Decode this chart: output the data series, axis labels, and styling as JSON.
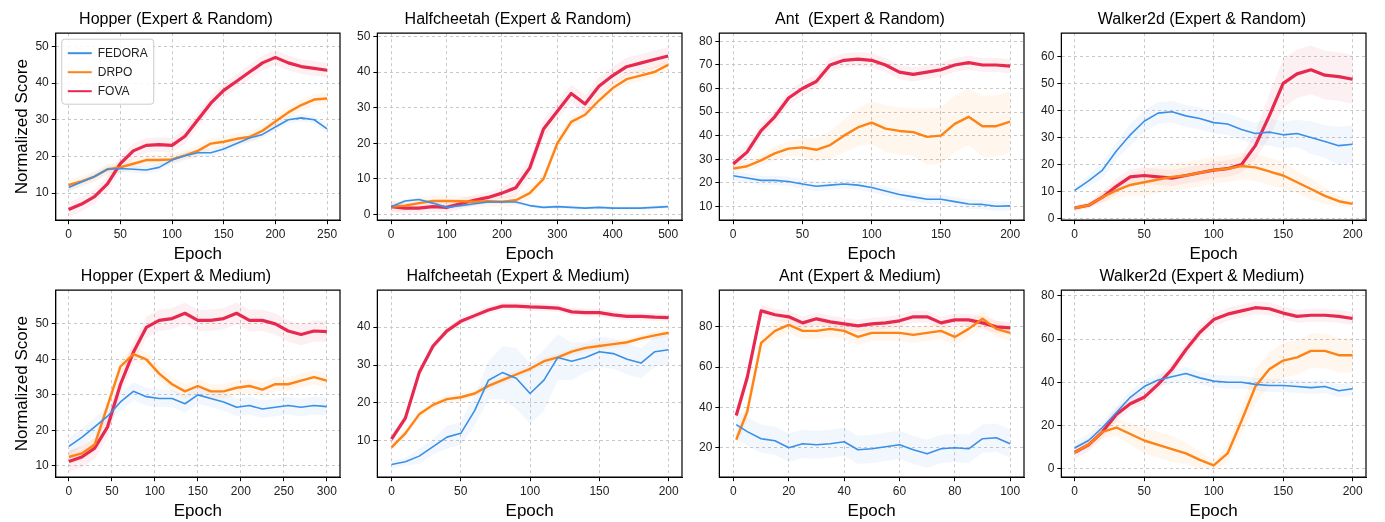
{
  "chart_data": [
    {
      "type": "line",
      "title": "Hopper (Expert & Random)",
      "xlabel": "Epoch",
      "ylabel": "Normalized Score",
      "x": [
        0,
        12.5,
        25,
        37.5,
        50,
        62.5,
        75,
        87.5,
        100,
        112.5,
        125,
        137.5,
        150,
        162.5,
        175,
        187.5,
        200,
        212.5,
        225,
        237.5,
        250
      ],
      "xlim": [
        -12.5,
        262.5
      ],
      "xticks": [
        0,
        50,
        100,
        150,
        200,
        250
      ],
      "ylim": [
        2.6,
        53.6
      ],
      "yticks": [
        10,
        20,
        30,
        40,
        50
      ],
      "grid": true,
      "legend": "top left",
      "series": [
        {
          "name": "FEDORA",
          "color": "#3a8fe6",
          "values": [
            11.5,
            13,
            14.5,
            16.5,
            16.7,
            16.5,
            16.3,
            17,
            19,
            20.2,
            21,
            21,
            22,
            23.5,
            25,
            26,
            28,
            30,
            30.5,
            30,
            27.5
          ],
          "lower": [
            10.5,
            12,
            13.5,
            15.5,
            15.7,
            15.5,
            15.3,
            16,
            18,
            19.2,
            20,
            20,
            21,
            22.5,
            24,
            25,
            27,
            29,
            29.5,
            29,
            26.5
          ],
          "upper": [
            12.5,
            14,
            15.5,
            17.5,
            17.7,
            17.5,
            17.3,
            18,
            20,
            21.2,
            22,
            22,
            23,
            24.5,
            26,
            27,
            29,
            31,
            31.5,
            31,
            28.5
          ]
        },
        {
          "name": "DRPO",
          "color": "#ff8214",
          "values": [
            12.2,
            13.2,
            14.5,
            16.5,
            17,
            18,
            19,
            19,
            19.2,
            20.3,
            21.5,
            23.5,
            24,
            24.8,
            25.3,
            27,
            29.5,
            32,
            34,
            35.5,
            35.8
          ],
          "lower": [
            10.7,
            11.7,
            13,
            15,
            15.5,
            16.5,
            17.5,
            17.5,
            17.7,
            18.8,
            20,
            22,
            22.5,
            23.3,
            23.8,
            25.5,
            28,
            30.5,
            32.5,
            34,
            34.3
          ],
          "upper": [
            13.7,
            14.7,
            16,
            18,
            18.5,
            19.5,
            20.5,
            20.5,
            20.7,
            21.8,
            23,
            25,
            25.5,
            26.3,
            26.8,
            28.5,
            31,
            33.5,
            35.5,
            37,
            37.3
          ]
        },
        {
          "name": "FOVA",
          "color": "#e8294f",
          "values": [
            5.5,
            7,
            9,
            12.5,
            18,
            21.5,
            23,
            23.2,
            23,
            25.5,
            30,
            34.5,
            38,
            40.5,
            43,
            45.5,
            47,
            45.5,
            44.5,
            44,
            43.5
          ],
          "lower": [
            3.5,
            5,
            7,
            10.5,
            16,
            19.5,
            21,
            21.2,
            21,
            23.5,
            28,
            32.5,
            36,
            38.5,
            41,
            43.5,
            45,
            43.5,
            42.5,
            42,
            41.5
          ],
          "upper": [
            7.5,
            9,
            11,
            14.5,
            20,
            23.5,
            25,
            25.2,
            25,
            27.5,
            32,
            36.5,
            40,
            42.5,
            45,
            47.5,
            49,
            47.5,
            46.5,
            46,
            45.5
          ]
        }
      ]
    },
    {
      "type": "line",
      "title": "Halfcheetah (Expert & Random)",
      "xlabel": "Epoch",
      "x": [
        0,
        25,
        50,
        75,
        100,
        125,
        150,
        175,
        200,
        225,
        250,
        275,
        300,
        325,
        350,
        375,
        400,
        425,
        450,
        475,
        500
      ],
      "xlim": [
        -25,
        525
      ],
      "xticks": [
        0,
        100,
        200,
        300,
        400,
        500
      ],
      "ylim": [
        -1.6,
        50.9
      ],
      "yticks": [
        0,
        10,
        20,
        30,
        40,
        50
      ],
      "grid": true,
      "series": [
        {
          "color": "#3a8fe6",
          "values": [
            2.2,
            3.8,
            4.2,
            3.2,
            2,
            2.5,
            3,
            3.5,
            3.5,
            3.5,
            2.5,
            2,
            2.2,
            2,
            1.8,
            2,
            1.8,
            1.8,
            1.8,
            2,
            2.2
          ],
          "lower": [
            1.7,
            3.3,
            3.7,
            2.7,
            1.5,
            2,
            2.5,
            3,
            3,
            3,
            2,
            1.5,
            1.7,
            1.5,
            1.3,
            1.5,
            1.3,
            1.3,
            1.3,
            1.5,
            1.7
          ],
          "upper": [
            2.7,
            4.3,
            4.7,
            3.7,
            2.5,
            3,
            3.5,
            4,
            4,
            4,
            3,
            2.5,
            2.7,
            2.5,
            2.3,
            2.5,
            2.3,
            2.3,
            2.3,
            2.5,
            2.7
          ]
        },
        {
          "color": "#ff8214",
          "values": [
            2.2,
            2.5,
            3.2,
            3.8,
            3.8,
            3.7,
            3.6,
            3.7,
            3.6,
            4,
            6,
            10,
            20,
            26,
            28,
            32,
            35.5,
            38,
            39,
            40,
            42
          ],
          "lower": [
            0.7,
            1,
            1.7,
            2.3,
            2.3,
            2.2,
            2.1,
            2.2,
            2.1,
            2.5,
            4.5,
            8.5,
            18.5,
            24.5,
            26.5,
            30.5,
            34,
            36.5,
            37.5,
            38.5,
            40.5
          ],
          "upper": [
            3.7,
            4,
            4.7,
            5.3,
            5.3,
            5.2,
            5.1,
            5.2,
            5.1,
            5.5,
            7.5,
            11.5,
            21.5,
            27.5,
            29.5,
            33.5,
            37,
            39.5,
            40.5,
            41.5,
            43.5
          ]
        },
        {
          "color": "#e8294f",
          "values": [
            2.2,
            1.8,
            1.8,
            2.2,
            2,
            3,
            4,
            4.8,
            6,
            7.5,
            13,
            24,
            29,
            34,
            31,
            36,
            39,
            41.5,
            42.5,
            43.5,
            44.5
          ],
          "lower": [
            0.7,
            0.3,
            0.3,
            0.7,
            0.5,
            1.5,
            2.5,
            3.3,
            4.5,
            5,
            10.5,
            21.5,
            26.5,
            31.5,
            28.5,
            33.5,
            36.5,
            39,
            40,
            41,
            42
          ],
          "upper": [
            3.7,
            3.3,
            3.3,
            3.7,
            3.5,
            4.5,
            5.5,
            6.3,
            7.5,
            10,
            15.5,
            26.5,
            31.5,
            36.5,
            33.5,
            38.5,
            41.5,
            44,
            45,
            46,
            47
          ]
        }
      ]
    },
    {
      "type": "line",
      "title": "Ant  (Expert & Random)",
      "xlabel": "Epoch",
      "x": [
        0,
        10,
        20,
        30,
        40,
        50,
        60,
        70,
        80,
        90,
        100,
        110,
        120,
        130,
        140,
        150,
        160,
        170,
        180,
        190,
        200
      ],
      "xlim": [
        -10,
        210
      ],
      "xticks": [
        0,
        50,
        100,
        150,
        200
      ],
      "ylim": [
        4.1,
        83.5
      ],
      "yticks": [
        10,
        20,
        30,
        40,
        50,
        60,
        70,
        80
      ],
      "grid": true,
      "series": [
        {
          "color": "#3a8fe6",
          "values": [
            23,
            22,
            21,
            21,
            20.5,
            19.5,
            18.5,
            19,
            19.5,
            19,
            18,
            16.5,
            15,
            14,
            13,
            13,
            12,
            11,
            10.8,
            10,
            10.2
          ],
          "lower": [
            21,
            20,
            19,
            19,
            18.5,
            17.5,
            16.5,
            17,
            17.5,
            17,
            16,
            14.5,
            13,
            12,
            11,
            11,
            10,
            9,
            8.8,
            8,
            8.2
          ],
          "upper": [
            25,
            24,
            23,
            23,
            22.5,
            21.5,
            20.5,
            21,
            21.5,
            21,
            20,
            18.5,
            17,
            16,
            15,
            15,
            14,
            13,
            12.8,
            12,
            12.2
          ]
        },
        {
          "color": "#ff8214",
          "values": [
            26,
            27,
            29.5,
            32.5,
            34.5,
            35,
            34,
            36,
            40,
            43.5,
            45.5,
            43,
            42,
            41.5,
            39.5,
            40,
            45,
            48,
            44,
            44,
            46
          ],
          "lower": [
            25,
            25,
            27.5,
            29.5,
            31.5,
            31,
            29,
            30,
            33,
            35.5,
            36.5,
            33,
            32,
            31.5,
            27.5,
            28,
            33,
            36,
            31,
            31,
            33
          ],
          "upper": [
            27,
            29,
            31.5,
            35.5,
            37.5,
            39,
            39,
            42,
            47,
            51.5,
            54.5,
            53,
            52,
            51.5,
            51.5,
            52,
            57,
            60,
            57,
            57,
            59
          ]
        },
        {
          "color": "#e8294f",
          "values": [
            28,
            33,
            42,
            48,
            56,
            60,
            63,
            70,
            72,
            72.5,
            72,
            70,
            67,
            66,
            67,
            68,
            70,
            71,
            70,
            70,
            69.5
          ],
          "lower": [
            25,
            30,
            39,
            45,
            53,
            57,
            60,
            67,
            69,
            69.5,
            69,
            67,
            64,
            63,
            64,
            65,
            67,
            68,
            67,
            67,
            66.5
          ],
          "upper": [
            31,
            36,
            45,
            51,
            59,
            63,
            66,
            73,
            75,
            75.5,
            75,
            73,
            70,
            69,
            70,
            71,
            73,
            74,
            73,
            73,
            72.5
          ]
        }
      ]
    },
    {
      "type": "line",
      "title": "Walker2d (Expert & Random)",
      "xlabel": "Epoch",
      "x": [
        0,
        10,
        20,
        30,
        40,
        50,
        60,
        70,
        80,
        90,
        100,
        110,
        120,
        130,
        140,
        150,
        160,
        170,
        180,
        190,
        200
      ],
      "xlim": [
        -9.6,
        209.6
      ],
      "xticks": [
        0,
        50,
        100,
        150,
        200
      ],
      "ylim": [
        -0.5,
        68.5
      ],
      "yticks": [
        0,
        10,
        20,
        30,
        40,
        50,
        60
      ],
      "grid": true,
      "series": [
        {
          "color": "#3a8fe6",
          "values": [
            10.5,
            14,
            18,
            25,
            31,
            36,
            39,
            39.5,
            38,
            37,
            35.5,
            35,
            33,
            31.5,
            32,
            31,
            31.5,
            30,
            28.5,
            27,
            27.5
          ],
          "lower": [
            9.5,
            12,
            15,
            22,
            27,
            32,
            35,
            35.5,
            34,
            33,
            31.5,
            31,
            29,
            27.5,
            27,
            26,
            26.5,
            24,
            22.5,
            20,
            20.5
          ],
          "upper": [
            11.5,
            16,
            21,
            28,
            35,
            40,
            43,
            43.5,
            42,
            41,
            39.5,
            39,
            37,
            35.5,
            37,
            36,
            36.5,
            36,
            34.5,
            34,
            34.5
          ]
        },
        {
          "color": "#ff8214",
          "values": [
            4,
            5,
            8,
            10.5,
            12.5,
            13.5,
            14.5,
            15.5,
            16,
            17,
            18,
            18.5,
            19.5,
            19,
            17.5,
            16,
            13.5,
            11,
            8.5,
            6.5,
            5.5
          ],
          "lower": [
            3,
            4,
            6,
            7.5,
            8.5,
            8.5,
            9.5,
            10.5,
            11,
            12,
            13,
            13.5,
            14.5,
            14,
            12.5,
            11,
            9.5,
            7,
            5.5,
            4.5,
            4.5
          ],
          "upper": [
            5,
            6,
            10,
            13.5,
            16.5,
            18.5,
            19.5,
            20.5,
            21,
            22,
            23,
            23.5,
            24.5,
            24,
            22.5,
            21,
            17.5,
            15,
            11.5,
            8.5,
            6.5
          ]
        },
        {
          "color": "#e8294f",
          "values": [
            4,
            5,
            8,
            12,
            15.5,
            16,
            15.5,
            15,
            16,
            17,
            18,
            18.5,
            20,
            27,
            38,
            50,
            53.5,
            55,
            53,
            52.5,
            51.5
          ],
          "lower": [
            3,
            4,
            6,
            9,
            12.5,
            13,
            12.5,
            12,
            13,
            14,
            15,
            15.5,
            17,
            22,
            30,
            41,
            44.5,
            46,
            44,
            43.5,
            42.5
          ],
          "upper": [
            5,
            6,
            10,
            15,
            18.5,
            19,
            18.5,
            18,
            19,
            20,
            21,
            21.5,
            23,
            32,
            46,
            59,
            62.5,
            64,
            62,
            61.5,
            60.5
          ]
        }
      ]
    },
    {
      "type": "line",
      "title": "Hopper (Expert & Medium)",
      "xlabel": "Epoch",
      "ylabel": "Normalized Score",
      "x": [
        0,
        15,
        30,
        45,
        60,
        75,
        90,
        105,
        120,
        135,
        150,
        165,
        180,
        195,
        210,
        225,
        240,
        255,
        270,
        285,
        300
      ],
      "xlim": [
        -15.3,
        315.3
      ],
      "xticks": [
        0,
        50,
        100,
        150,
        200,
        250,
        300
      ],
      "ylim": [
        6.8,
        59.5
      ],
      "yticks": [
        10,
        20,
        30,
        40,
        50
      ],
      "grid": true,
      "series": [
        {
          "color": "#3a8fe6",
          "values": [
            15.5,
            18,
            21,
            24,
            28,
            31,
            29.5,
            29,
            29,
            27.5,
            30,
            29,
            28,
            26.5,
            27,
            26,
            26.5,
            27,
            26.5,
            27,
            26.7
          ],
          "lower": [
            13,
            15.5,
            18.5,
            21.5,
            25.5,
            28.5,
            27,
            26.5,
            26.5,
            25,
            27.5,
            26.5,
            25.5,
            24,
            24.5,
            23.5,
            24,
            24.5,
            24,
            24.5,
            24.2
          ],
          "upper": [
            18,
            20.5,
            23.5,
            26.5,
            30.5,
            33.5,
            32,
            31.5,
            31.5,
            30,
            32.5,
            31.5,
            30.5,
            29,
            29.5,
            28.5,
            29,
            29.5,
            29,
            29.5,
            29.2
          ]
        },
        {
          "color": "#ff8214",
          "values": [
            12.5,
            13.5,
            16,
            27,
            38,
            41.5,
            40,
            36,
            33,
            31,
            32.5,
            31,
            31,
            32,
            32.5,
            31.5,
            33,
            33,
            34,
            35,
            34
          ],
          "lower": [
            10.5,
            11.5,
            14,
            25,
            36,
            39.5,
            38,
            34,
            31,
            29,
            30.5,
            29,
            29,
            30,
            30.5,
            29.5,
            31,
            31,
            32,
            33,
            32
          ],
          "upper": [
            14.5,
            15.5,
            18,
            29,
            40,
            43.5,
            42,
            38,
            35,
            33,
            34.5,
            33,
            33,
            34,
            34.5,
            33.5,
            35,
            35,
            36,
            37,
            36
          ]
        },
        {
          "color": "#e8294f",
          "values": [
            11.2,
            12.5,
            15,
            21,
            33,
            42,
            49,
            51,
            51.5,
            53,
            51,
            51,
            51.5,
            53,
            51,
            51,
            50,
            48,
            47,
            48,
            47.8
          ],
          "lower": [
            8.2,
            9.5,
            12,
            18,
            30,
            39,
            46,
            48,
            48.5,
            50,
            48,
            48,
            48.5,
            50,
            48,
            48,
            47,
            45,
            44,
            45,
            44.8
          ],
          "upper": [
            14.2,
            15.5,
            18,
            24,
            36,
            45,
            52,
            54,
            54.5,
            56,
            54,
            54,
            54.5,
            56,
            54,
            54,
            53,
            51,
            50,
            51,
            50.8
          ]
        }
      ]
    },
    {
      "type": "line",
      "title": "Halfcheetah (Expert & Medium)",
      "xlabel": "Epoch",
      "x": [
        0,
        10,
        20,
        30,
        40,
        50,
        60,
        70,
        80,
        90,
        100,
        110,
        120,
        130,
        140,
        150,
        160,
        170,
        180,
        190,
        200
      ],
      "xlim": [
        -10.2,
        209.6
      ],
      "xticks": [
        0,
        50,
        100,
        150,
        200
      ],
      "ylim": [
        0.45,
        49.7
      ],
      "yticks": [
        10,
        20,
        30,
        40
      ],
      "grid": true,
      "series": [
        {
          "color": "#3a8fe6",
          "values": [
            3.8,
            4.5,
            6,
            8.5,
            11,
            12,
            18,
            26,
            28,
            26.5,
            22.5,
            26,
            32,
            31,
            32,
            33.5,
            33,
            31.5,
            30.5,
            33.5,
            34
          ],
          "lower": [
            2.8,
            3.5,
            4,
            6.5,
            8,
            9,
            14,
            21,
            21,
            18.5,
            14.5,
            18,
            26,
            26,
            28,
            29.5,
            29,
            27.5,
            26.5,
            29.5,
            30
          ],
          "upper": [
            4.8,
            5.5,
            8,
            10.5,
            14,
            15,
            22,
            31,
            35,
            34.5,
            30.5,
            34,
            38,
            36,
            36,
            37.5,
            37,
            35.5,
            34.5,
            37.5,
            38
          ]
        },
        {
          "color": "#ff8214",
          "values": [
            8.3,
            12,
            17,
            19.5,
            21,
            21.5,
            22.5,
            24.5,
            26,
            27.5,
            29,
            31,
            32,
            33.5,
            34.5,
            35,
            35.5,
            36,
            37,
            37.8,
            38.5
          ],
          "lower": [
            7.3,
            11,
            16,
            18.5,
            20,
            20.5,
            21.5,
            23.5,
            25,
            26.5,
            28,
            30,
            31,
            32.5,
            33.5,
            34,
            34.5,
            35,
            36,
            36.8,
            37.5
          ],
          "upper": [
            9.3,
            13,
            18,
            20.5,
            22,
            22.5,
            23.5,
            25.5,
            27,
            28.5,
            30,
            32,
            33,
            34.5,
            35.5,
            36,
            36.5,
            37,
            38,
            38.8,
            39.5
          ]
        },
        {
          "color": "#e8294f",
          "values": [
            10.5,
            16,
            28,
            35,
            39,
            41.5,
            43,
            44.5,
            45.5,
            45.5,
            45.3,
            45.2,
            45,
            44,
            43.8,
            43.8,
            43.2,
            42.8,
            42.8,
            42.6,
            42.5
          ],
          "lower": [
            9.5,
            15,
            27,
            34,
            38,
            40.5,
            42,
            43.5,
            44.5,
            44.5,
            44.3,
            44.2,
            44,
            43,
            42.8,
            42.8,
            42.2,
            41.8,
            41.8,
            41.6,
            41.5
          ],
          "upper": [
            11.5,
            17,
            29,
            36,
            40,
            42.5,
            44,
            45.5,
            46.5,
            46.5,
            46.3,
            46.2,
            46,
            45,
            44.8,
            44.8,
            44.2,
            43.8,
            43.8,
            43.6,
            43.5
          ]
        }
      ]
    },
    {
      "type": "line",
      "title": "Ant (Expert & Medium)",
      "xlabel": "Epoch",
      "x": [
        1,
        5,
        10,
        15,
        20,
        25,
        30,
        35,
        40,
        45,
        50,
        55,
        60,
        65,
        70,
        75,
        80,
        85,
        90,
        95,
        100
      ],
      "xlim": [
        -5.1,
        105
      ],
      "xticks": [
        0,
        20,
        40,
        60,
        80,
        100
      ],
      "ylim": [
        5.4,
        98.2
      ],
      "yticks": [
        20,
        40,
        60,
        80
      ],
      "grid": true,
      "series": [
        {
          "color": "#3a8fe6",
          "values": [
            31.5,
            28,
            24.5,
            23.5,
            20,
            22,
            21.5,
            22,
            23,
            19,
            19.5,
            20.5,
            21.5,
            19,
            17,
            19.5,
            20,
            19.5,
            24.5,
            25,
            22
          ],
          "lower": [
            24.5,
            21,
            17.5,
            16.5,
            13,
            15,
            14.5,
            15,
            16,
            12,
            12.5,
            13.5,
            14.5,
            12,
            10,
            12.5,
            13,
            12.5,
            17.5,
            18,
            15
          ],
          "upper": [
            38.5,
            35,
            31.5,
            30.5,
            27,
            29,
            28.5,
            29,
            30,
            26,
            26.5,
            27.5,
            28.5,
            26,
            24,
            26.5,
            27,
            26.5,
            31.5,
            32,
            29
          ]
        },
        {
          "color": "#ff8214",
          "values": [
            24,
            38,
            72,
            78,
            81,
            78,
            78,
            79,
            78,
            75,
            77,
            77,
            77,
            76,
            77,
            78,
            75,
            79,
            84,
            79,
            77
          ],
          "lower": [
            20,
            34,
            68,
            74,
            77,
            74,
            74,
            75,
            74,
            71,
            73,
            73,
            73,
            72,
            73,
            74,
            71,
            75,
            80,
            75,
            73
          ],
          "upper": [
            28,
            42,
            76,
            82,
            85,
            82,
            82,
            83,
            82,
            79,
            81,
            81,
            81,
            80,
            81,
            82,
            79,
            83,
            88,
            83,
            81
          ]
        },
        {
          "color": "#e8294f",
          "values": [
            36,
            55,
            88,
            86,
            85,
            82,
            84,
            82.5,
            81.5,
            80.5,
            81.5,
            82,
            83,
            85,
            85,
            82,
            83.5,
            83.5,
            82,
            80,
            79.5
          ],
          "lower": [
            33,
            52,
            85,
            83,
            82,
            79,
            81,
            79.5,
            78.5,
            77.5,
            78.5,
            79,
            80,
            82,
            82,
            79,
            80.5,
            80.5,
            79,
            77,
            76.5
          ],
          "upper": [
            39,
            58,
            91,
            89,
            88,
            85,
            87,
            85.5,
            84.5,
            83.5,
            84.5,
            85,
            86,
            88,
            88,
            85,
            86.5,
            86.5,
            85,
            83,
            82.5
          ]
        }
      ]
    },
    {
      "type": "line",
      "title": "Walker2d (Expert & Medium)",
      "xlabel": "Epoch",
      "x": [
        0,
        10,
        20,
        30,
        40,
        50,
        60,
        70,
        80,
        90,
        100,
        110,
        120,
        130,
        140,
        150,
        160,
        170,
        180,
        190,
        200
      ],
      "xlim": [
        -9.6,
        209.6
      ],
      "xticks": [
        0,
        50,
        100,
        150,
        200
      ],
      "ylim": [
        -4,
        82.6
      ],
      "yticks": [
        0,
        20,
        40,
        60,
        80
      ],
      "grid": true,
      "series": [
        {
          "color": "#3a8fe6",
          "values": [
            9.5,
            13,
            19,
            26,
            33,
            38,
            41,
            42.5,
            44,
            42,
            40.5,
            40,
            40,
            39,
            38.5,
            38.5,
            38,
            37.5,
            38,
            36,
            37
          ],
          "lower": [
            6.5,
            10,
            16,
            23,
            30,
            35,
            38,
            39.5,
            41,
            39,
            37.5,
            37,
            37,
            36,
            35.5,
            35.5,
            35,
            34.5,
            35,
            33,
            34
          ],
          "upper": [
            12.5,
            16,
            22,
            29,
            36,
            41,
            44,
            45.5,
            47,
            45,
            43.5,
            43,
            43,
            42,
            41.5,
            41.5,
            41,
            40.5,
            41,
            39,
            40
          ]
        },
        {
          "color": "#ff8214",
          "values": [
            7.5,
            11,
            17,
            19,
            16,
            13,
            11,
            9,
            7,
            4,
            1.5,
            7,
            22,
            38,
            46,
            50,
            51.5,
            54.5,
            54.5,
            52.5,
            52.5
          ],
          "lower": [
            6.5,
            9,
            14,
            15,
            11,
            7,
            5,
            3,
            2,
            0,
            -0.5,
            3,
            16,
            30,
            38,
            42,
            43.5,
            46.5,
            46.5,
            44.5,
            44.5
          ],
          "upper": [
            8.5,
            13,
            20,
            23,
            21,
            19,
            17,
            15,
            12,
            8,
            3.5,
            11,
            28,
            46,
            54,
            58,
            59.5,
            62.5,
            62.5,
            60.5,
            60.5
          ]
        },
        {
          "color": "#e8294f",
          "values": [
            7.5,
            11,
            17,
            25,
            30,
            33,
            39,
            46,
            55,
            63,
            69,
            71.5,
            73,
            74.5,
            74,
            72,
            70.5,
            71,
            71,
            70.5,
            69.5
          ],
          "lower": [
            4.5,
            8,
            14,
            22,
            27,
            30,
            36,
            43,
            52,
            60,
            66,
            68.5,
            70,
            71.5,
            71,
            69,
            67.5,
            68,
            68,
            67.5,
            66.5
          ],
          "upper": [
            10.5,
            14,
            20,
            28,
            33,
            36,
            42,
            49,
            58,
            66,
            72,
            74.5,
            76,
            77.5,
            77,
            75,
            73.5,
            74,
            74,
            73.5,
            72.5
          ]
        }
      ]
    }
  ]
}
